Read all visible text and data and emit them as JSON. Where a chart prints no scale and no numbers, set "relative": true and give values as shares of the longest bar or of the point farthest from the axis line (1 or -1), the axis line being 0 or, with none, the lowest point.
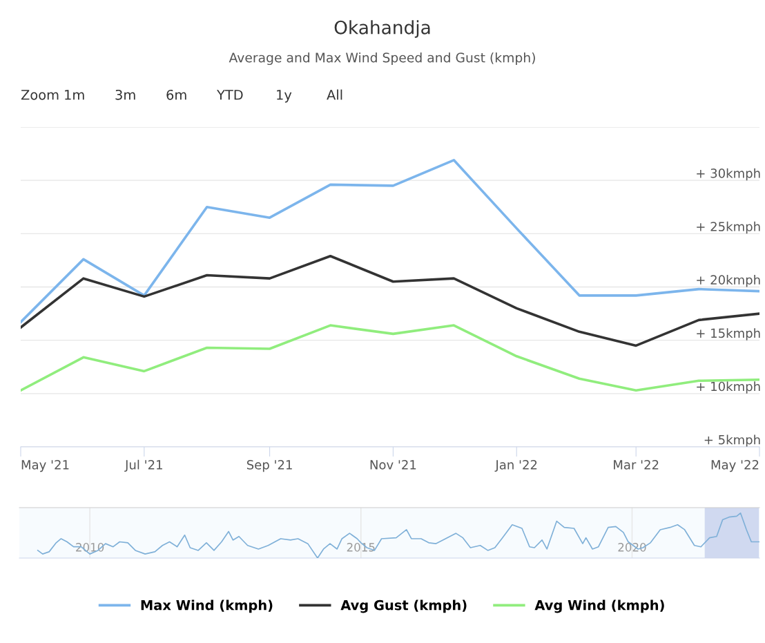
{
  "chart_data": [
    {
      "type": "line",
      "title": "Okahandja",
      "subtitle": "Average and Max Wind Speed and Gust (kmph)",
      "annotations": [
        "Zoom",
        "1m",
        "3m",
        "6m",
        "YTD",
        "1y",
        "All"
      ],
      "x": [
        "2021-05",
        "2021-06",
        "2021-07",
        "2021-08",
        "2021-09",
        "2021-10",
        "2021-11",
        "2021-12",
        "2022-01",
        "2022-02",
        "2022-03",
        "2022-04",
        "2022-05"
      ],
      "series": [
        {
          "name": "Max Wind (kmph)",
          "color": "#7cb5ec",
          "values": [
            16.7,
            22.6,
            19.2,
            27.5,
            26.5,
            29.6,
            29.5,
            31.9,
            25.5,
            19.2,
            19.2,
            19.8,
            19.6
          ]
        },
        {
          "name": "Avg Gust (kmph)",
          "color": "#333333",
          "values": [
            16.2,
            20.8,
            19.1,
            21.1,
            20.8,
            22.9,
            20.5,
            20.8,
            18.0,
            15.8,
            14.5,
            16.9,
            17.5
          ]
        },
        {
          "name": "Avg Wind (kmph)",
          "color": "#90ed7d",
          "values": [
            10.3,
            13.4,
            12.1,
            14.3,
            14.2,
            16.4,
            15.6,
            16.4,
            13.5,
            11.4,
            10.3,
            11.2,
            11.3
          ]
        }
      ],
      "xlim": [
        "2021-05",
        "2022-05"
      ],
      "xticks": [
        {
          "value": "2021-05",
          "label": "May '21"
        },
        {
          "value": "2021-07",
          "label": "Jul '21"
        },
        {
          "value": "2021-09",
          "label": "Sep '21"
        },
        {
          "value": "2021-11",
          "label": "Nov '21"
        },
        {
          "value": "2022-01",
          "label": "Jan '22"
        },
        {
          "value": "2022-03",
          "label": "Mar '22"
        },
        {
          "value": "2022-05",
          "label": "May '22"
        }
      ],
      "ylim": [
        5,
        35
      ],
      "yticks": [
        {
          "value": 5,
          "label": "+ 5kmph"
        },
        {
          "value": 10,
          "label": "+ 10kmph"
        },
        {
          "value": 15,
          "label": "+ 15kmph"
        },
        {
          "value": 20,
          "label": "+ 20kmph"
        },
        {
          "value": 25,
          "label": "+ 25kmph"
        },
        {
          "value": 30,
          "label": "+ 30kmph"
        },
        {
          "value": 35,
          "label": null
        }
      ],
      "grid": "y",
      "legend": "bottom",
      "marker": "none",
      "line_style": "solid"
    },
    {
      "type": "line",
      "relative": true,
      "x": [
        2009.04,
        2009.13,
        2009.25,
        2009.38,
        2009.47,
        2009.58,
        2009.7,
        2009.84,
        2010.0,
        2010.15,
        2010.29,
        2010.43,
        2010.55,
        2010.7,
        2010.84,
        2011.02,
        2011.2,
        2011.34,
        2011.47,
        2011.61,
        2011.75,
        2011.85,
        2012.0,
        2012.15,
        2012.29,
        2012.43,
        2012.56,
        2012.64,
        2012.75,
        2012.91,
        2013.11,
        2013.29,
        2013.52,
        2013.7,
        2013.84,
        2014.02,
        2014.2,
        2014.31,
        2014.43,
        2014.56,
        2014.65,
        2014.79,
        2014.93,
        2015.0,
        2015.11,
        2015.25,
        2015.38,
        2015.65,
        2015.84,
        2015.93,
        2016.11,
        2016.25,
        2016.38,
        2016.56,
        2016.75,
        2016.88,
        2017.02,
        2017.2,
        2017.34,
        2017.47,
        2017.61,
        2017.79,
        2017.97,
        2018.11,
        2018.2,
        2018.34,
        2018.43,
        2018.61,
        2018.75,
        2018.93,
        2019.09,
        2019.15,
        2019.27,
        2019.38,
        2019.56,
        2019.7,
        2019.84,
        2019.93,
        2020.11,
        2020.2,
        2020.34,
        2020.52,
        2020.7,
        2020.84,
        2020.97,
        2021.15,
        2021.27,
        2021.43,
        2021.56,
        2021.67,
        2021.79,
        2021.93,
        2022.0,
        2022.11,
        2022.2,
        2022.34
      ],
      "series": [
        {
          "color": "#7fb0d8",
          "values": [
            0.17,
            0.09,
            0.14,
            0.34,
            0.43,
            0.36,
            0.25,
            0.25,
            0.09,
            0.17,
            0.32,
            0.25,
            0.36,
            0.34,
            0.17,
            0.09,
            0.14,
            0.28,
            0.36,
            0.25,
            0.51,
            0.23,
            0.17,
            0.34,
            0.17,
            0.36,
            0.59,
            0.4,
            0.48,
            0.28,
            0.2,
            0.28,
            0.43,
            0.4,
            0.43,
            0.32,
            0,
            0.2,
            0.32,
            0.2,
            0.43,
            0.55,
            0.43,
            0.34,
            0.23,
            0.17,
            0.43,
            0.45,
            0.63,
            0.43,
            0.43,
            0.34,
            0.32,
            0.43,
            0.55,
            0.45,
            0.23,
            0.28,
            0.17,
            0.23,
            0.45,
            0.74,
            0.66,
            0.25,
            0.23,
            0.4,
            0.2,
            0.82,
            0.68,
            0.66,
            0.32,
            0.45,
            0.2,
            0.25,
            0.68,
            0.7,
            0.57,
            0.36,
            0.2,
            0.23,
            0.34,
            0.63,
            0.68,
            0.74,
            0.63,
            0.28,
            0.25,
            0.45,
            0.48,
            0.85,
            0.91,
            0.93,
            1,
            0.63,
            0.36,
            0.36
          ]
        }
      ],
      "xlim": [
        2008.7,
        2022.35
      ],
      "xticks": [
        2010,
        2015,
        2020
      ],
      "bands": [
        {
          "axis": "x",
          "from": 2021.34,
          "to": 2022.34,
          "color": "#c5d1ec"
        }
      ],
      "grid": "x"
    }
  ]
}
